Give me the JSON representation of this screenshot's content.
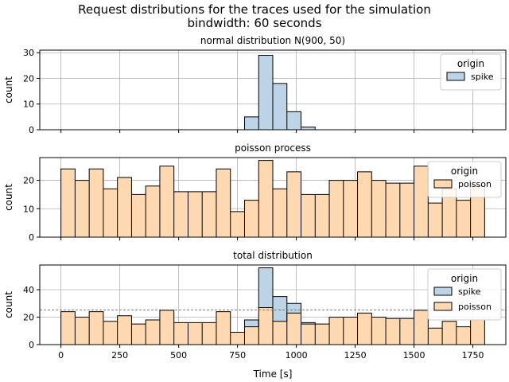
{
  "suptitle_line1": "Request distributions for the traces used for the simulation",
  "suptitle_line2": "bindwidth: 60 seconds",
  "colors": {
    "spike": "#bcd4e6",
    "poisson": "#fdd8b0",
    "reference_line": "#d62728",
    "grid": "#b0b0b0",
    "edge": "#000000"
  },
  "chart_data": [
    {
      "type": "bar",
      "title": "normal distribution N(900, 50)",
      "ylabel": "count",
      "xlabel": "",
      "xlim": [
        -90,
        1890
      ],
      "ylim": [
        0,
        31
      ],
      "yticks": [
        0,
        10,
        20,
        30
      ],
      "xticks": [
        0,
        250,
        500,
        750,
        1000,
        1250,
        1500,
        1750
      ],
      "show_xtick_labels": false,
      "grid": true,
      "legend": {
        "title": "origin",
        "position": "top-right",
        "entries": [
          "spike"
        ]
      },
      "series": [
        {
          "name": "spike",
          "color_key": "spike",
          "bin_edges": [
            780,
            840,
            900,
            960,
            1020,
            1080
          ],
          "values": [
            5,
            29,
            18,
            7,
            1
          ]
        }
      ]
    },
    {
      "type": "bar",
      "title": "poisson process",
      "ylabel": "count",
      "xlabel": "",
      "xlim": [
        -90,
        1890
      ],
      "ylim": [
        0,
        28
      ],
      "yticks": [
        0,
        10,
        20
      ],
      "xticks": [
        0,
        250,
        500,
        750,
        1000,
        1250,
        1500,
        1750
      ],
      "show_xtick_labels": false,
      "grid": true,
      "legend": {
        "title": "origin",
        "position": "top-right",
        "entries": [
          "poisson"
        ]
      },
      "series": [
        {
          "name": "poisson",
          "color_key": "poisson",
          "bin_edges": [
            0,
            60,
            120,
            180,
            240,
            300,
            360,
            420,
            480,
            540,
            600,
            660,
            720,
            780,
            840,
            900,
            960,
            1020,
            1080,
            1140,
            1200,
            1260,
            1320,
            1380,
            1440,
            1500,
            1560,
            1620,
            1680,
            1740,
            1800
          ],
          "values": [
            24,
            20,
            24,
            17,
            21,
            15,
            18,
            25,
            16,
            16,
            16,
            24,
            9,
            13,
            27,
            17,
            23,
            15,
            15,
            20,
            20,
            23,
            20,
            19,
            19,
            25,
            12,
            17,
            13,
            18
          ]
        }
      ]
    },
    {
      "type": "bar",
      "title": "total distribution",
      "ylabel": "count",
      "xlabel": "Time [s]",
      "xlim": [
        -90,
        1890
      ],
      "ylim": [
        0,
        58
      ],
      "yticks": [
        0,
        20,
        40
      ],
      "xticks": [
        0,
        250,
        500,
        750,
        1000,
        1250,
        1500,
        1750
      ],
      "show_xtick_labels": true,
      "grid": true,
      "stacked": true,
      "reference_line": 25.3,
      "legend": {
        "title": "origin",
        "position": "top-right",
        "entries": [
          "spike",
          "poisson"
        ]
      },
      "series": [
        {
          "name": "poisson",
          "color_key": "poisson",
          "bin_edges": [
            0,
            60,
            120,
            180,
            240,
            300,
            360,
            420,
            480,
            540,
            600,
            660,
            720,
            780,
            840,
            900,
            960,
            1020,
            1080,
            1140,
            1200,
            1260,
            1320,
            1380,
            1440,
            1500,
            1560,
            1620,
            1680,
            1740,
            1800
          ],
          "values": [
            24,
            20,
            24,
            17,
            21,
            15,
            18,
            25,
            16,
            16,
            16,
            24,
            9,
            13,
            27,
            17,
            23,
            15,
            15,
            20,
            20,
            23,
            20,
            19,
            19,
            25,
            12,
            17,
            13,
            18
          ]
        },
        {
          "name": "spike",
          "color_key": "spike",
          "bin_edges": [
            780,
            840,
            900,
            960,
            1020,
            1080
          ],
          "values": [
            5,
            29,
            18,
            7,
            1
          ]
        }
      ]
    }
  ]
}
